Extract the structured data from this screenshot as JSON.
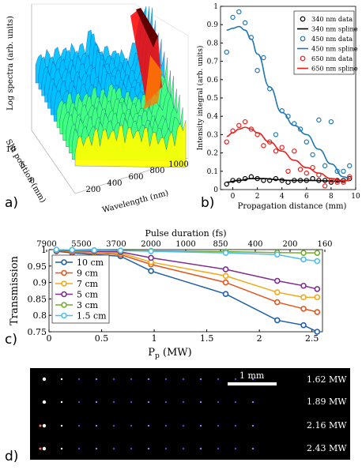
{
  "panel_labels": {
    "a": "a)",
    "b": "b)",
    "c": "c)",
    "d": "d)"
  },
  "chart_data": [
    {
      "id": "a",
      "type": "surface",
      "zlabel": "Log spectra (arb. units)",
      "xlabel": "Wavelength (nm)",
      "ylabel": "Slit position (mm)",
      "xticks": [
        "200",
        "400",
        "600",
        "800",
        "1000"
      ],
      "yticks": [
        "0",
        "5",
        "10"
      ],
      "colormap": [
        "#00008f",
        "#0040ff",
        "#00c0ff",
        "#40ff80",
        "#ffff00",
        "#ff8000",
        "#ff0000",
        "#600000"
      ]
    },
    {
      "id": "b",
      "type": "scatter",
      "xlabel": "Propagation distance (mm)",
      "ylabel": "Intensity integral (arb. units)",
      "xlim": [
        -1,
        10
      ],
      "ylim": [
        0,
        1
      ],
      "xticks": [
        0,
        2,
        4,
        6,
        8,
        10
      ],
      "yticks": [
        0,
        0.1,
        0.2,
        0.3,
        0.4,
        0.5,
        0.6,
        0.7,
        0.8,
        0.9,
        1
      ],
      "series": [
        {
          "name": "340  nm data",
          "kind": "points",
          "color": "#000000",
          "x": [
            -0.5,
            0,
            0.5,
            1,
            1.5,
            2,
            2.5,
            3,
            3.5,
            4,
            4.5,
            5,
            5.5,
            6,
            6.5,
            7,
            7.5,
            8,
            8.5,
            9,
            9.5
          ],
          "y": [
            0.03,
            0.05,
            0.05,
            0.06,
            0.07,
            0.06,
            0.05,
            0.05,
            0.06,
            0.05,
            0.04,
            0.05,
            0.05,
            0.05,
            0.06,
            0.05,
            0.05,
            0.04,
            0.05,
            0.05,
            0.06
          ]
        },
        {
          "name": "340  nm spline",
          "kind": "line",
          "color": "#000000",
          "x": [
            -0.5,
            0.5,
            1.5,
            2.5,
            3.5,
            4.5,
            5.5,
            6.5,
            7.5,
            8.5,
            9.5
          ],
          "y": [
            0.04,
            0.05,
            0.06,
            0.06,
            0.055,
            0.05,
            0.05,
            0.05,
            0.048,
            0.045,
            0.05
          ]
        },
        {
          "name": "450  nm data",
          "kind": "points",
          "color": "#1f77b4",
          "x": [
            -0.5,
            0,
            0.5,
            1,
            1.5,
            2,
            2.5,
            3,
            3.5,
            4,
            4.5,
            5,
            5.5,
            6,
            6.5,
            7,
            7.5,
            8,
            8.5,
            9,
            9.5
          ],
          "y": [
            0.75,
            0.94,
            0.97,
            0.91,
            0.83,
            0.65,
            0.72,
            0.55,
            0.3,
            0.43,
            0.4,
            0.36,
            0.33,
            0.26,
            0.19,
            0.38,
            0.13,
            0.37,
            0.1,
            0.1,
            0.13
          ]
        },
        {
          "name": "450  nm spline",
          "kind": "line",
          "color": "#1f77b4",
          "x": [
            -0.5,
            0,
            0.5,
            1,
            1.5,
            2,
            3,
            4,
            5,
            6,
            7,
            8,
            9,
            9.5
          ],
          "y": [
            0.87,
            0.88,
            0.89,
            0.87,
            0.82,
            0.74,
            0.56,
            0.42,
            0.35,
            0.3,
            0.22,
            0.14,
            0.07,
            0.06
          ]
        },
        {
          "name": "650  nm data",
          "kind": "points",
          "color": "#e8211e",
          "x": [
            -0.5,
            0,
            0.5,
            1,
            1.5,
            2,
            2.5,
            3,
            3.5,
            4,
            4.5,
            5,
            5.5,
            6,
            6.5,
            7,
            7.5,
            8,
            8.5,
            9,
            9.5
          ],
          "y": [
            0.26,
            0.32,
            0.35,
            0.37,
            0.33,
            0.3,
            0.24,
            0.26,
            0.21,
            0.23,
            0.1,
            0.21,
            0.11,
            0.09,
            0.12,
            0.08,
            0.02,
            0.05,
            0.04,
            0.04,
            0.07
          ]
        },
        {
          "name": "650  nm spline",
          "kind": "line",
          "color": "#e8211e",
          "x": [
            -0.5,
            0,
            0.5,
            1,
            1.5,
            2,
            3,
            4,
            5,
            6,
            7,
            8,
            9,
            9.5
          ],
          "y": [
            0.29,
            0.31,
            0.33,
            0.34,
            0.33,
            0.31,
            0.26,
            0.21,
            0.16,
            0.12,
            0.09,
            0.06,
            0.05,
            0.05
          ]
        }
      ]
    },
    {
      "id": "c",
      "type": "line",
      "xlabel": "P",
      "xlabel_sub": "p",
      "xlabel_unit": "(MW)",
      "ylabel": "Transmission",
      "top_label": "Pulse duration (fs)",
      "top_ticks": [
        "7900",
        "5500",
        "3700",
        "2000",
        "1000",
        "850",
        "400",
        "200",
        "160"
      ],
      "xlim": [
        0,
        2.6
      ],
      "ylim": [
        0.75,
        1
      ],
      "xticks": [
        "0",
        "0.5",
        "1",
        "1.5",
        "2",
        "2.5"
      ],
      "yticks": [
        "0.75",
        "0.8",
        "0.85",
        "0.9",
        "0.95",
        "1"
      ],
      "x": [
        0.07,
        0.22,
        0.43,
        0.68,
        0.97,
        1.68,
        2.17,
        2.42,
        2.55
      ],
      "series": [
        {
          "name": "10 cm",
          "color": "#1f5fa8",
          "values": [
            0.995,
            0.99,
            0.985,
            0.98,
            0.935,
            0.865,
            0.785,
            0.77,
            0.75
          ]
        },
        {
          "name": "9 cm",
          "color": "#e3561e",
          "values": [
            0.997,
            0.993,
            0.99,
            0.985,
            0.955,
            0.9,
            0.84,
            0.82,
            0.81
          ]
        },
        {
          "name": "7 cm",
          "color": "#f2a91a",
          "values": [
            0.998,
            0.995,
            0.992,
            0.99,
            0.962,
            0.92,
            0.87,
            0.855,
            0.855
          ]
        },
        {
          "name": "5 cm",
          "color": "#7e2f8e",
          "values": [
            0.998,
            0.997,
            0.995,
            0.993,
            0.975,
            0.94,
            0.905,
            0.89,
            0.88
          ]
        },
        {
          "name": "3 cm",
          "color": "#77ac30",
          "values": [
            0.999,
            0.999,
            0.998,
            0.997,
            0.996,
            0.994,
            0.991,
            0.99,
            0.99
          ]
        },
        {
          "name": "1.5 cm",
          "color": "#4dbeee",
          "values": [
            1.0,
            0.999,
            0.998,
            0.997,
            0.995,
            0.99,
            0.985,
            0.97,
            0.965
          ]
        }
      ]
    }
  ],
  "panel_d": {
    "scale_label": "1 mm",
    "rows": [
      "1.62 MW",
      "1.89 MW",
      "2.16 MW",
      "2.43 MW"
    ]
  }
}
